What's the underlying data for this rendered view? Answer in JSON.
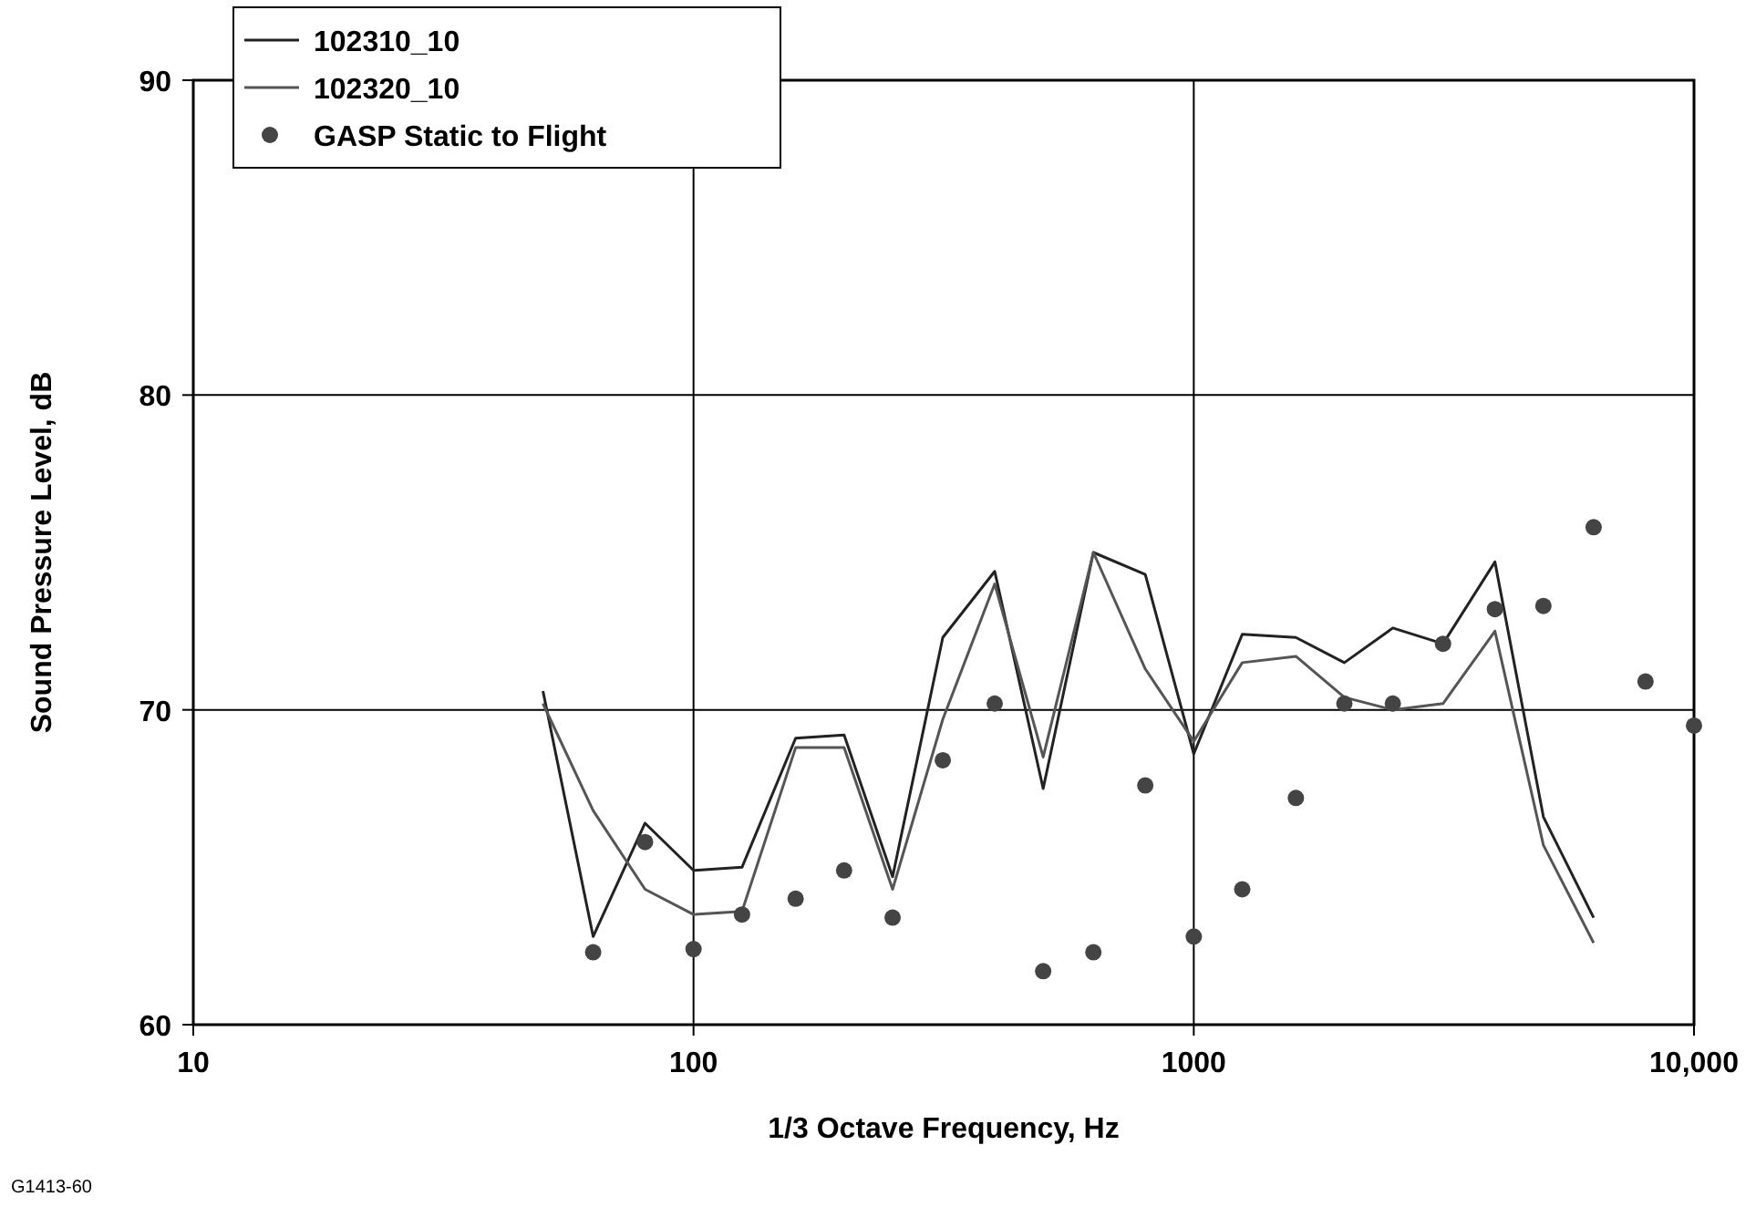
{
  "chart_data": {
    "type": "line",
    "xlabel": "1/3 Octave Frequency, Hz",
    "ylabel": "Sound Pressure Level, dB",
    "annotations": [
      "G1413-60"
    ],
    "x": [
      50,
      63,
      80,
      100,
      125,
      160,
      200,
      250,
      315,
      400,
      500,
      630,
      800,
      1000,
      1250,
      1600,
      2000,
      2500,
      3150,
      4000,
      5000,
      6300,
      8000,
      10000
    ],
    "series": [
      {
        "name": "102310_10",
        "color": "#222222",
        "marker": "none",
        "values": [
          70.6,
          62.8,
          66.4,
          64.9,
          65.0,
          69.1,
          69.2,
          64.7,
          72.3,
          74.4,
          67.5,
          75.0,
          74.3,
          68.6,
          72.4,
          72.3,
          71.5,
          72.6,
          72.1,
          74.7,
          66.6,
          63.4,
          null,
          null
        ]
      },
      {
        "name": "102320_10",
        "color": "#555555",
        "marker": "none",
        "values": [
          70.2,
          66.8,
          64.3,
          63.5,
          63.6,
          68.8,
          68.8,
          64.3,
          69.7,
          74.0,
          68.5,
          75.0,
          71.3,
          69.0,
          71.5,
          71.7,
          70.4,
          70.0,
          70.2,
          72.5,
          65.7,
          62.6,
          null,
          null
        ]
      },
      {
        "name": "GASP Static to Flight",
        "type": "scatter",
        "color": "#444444",
        "marker": "circle",
        "values": [
          null,
          62.3,
          65.8,
          62.4,
          63.5,
          64.0,
          64.9,
          63.4,
          68.4,
          70.2,
          61.7,
          62.3,
          67.6,
          62.8,
          64.3,
          67.2,
          70.2,
          70.2,
          72.1,
          73.2,
          73.3,
          75.8,
          70.9,
          69.5
        ]
      }
    ],
    "log": "x",
    "xlim": [
      10,
      10000
    ],
    "xticks": [
      10,
      100,
      1000,
      {
        "value": 10000,
        "label": "10,000"
      }
    ],
    "ylim": [
      60,
      90
    ],
    "yticks": [
      60,
      70,
      80,
      90
    ],
    "grid": true,
    "legend": "top left"
  }
}
